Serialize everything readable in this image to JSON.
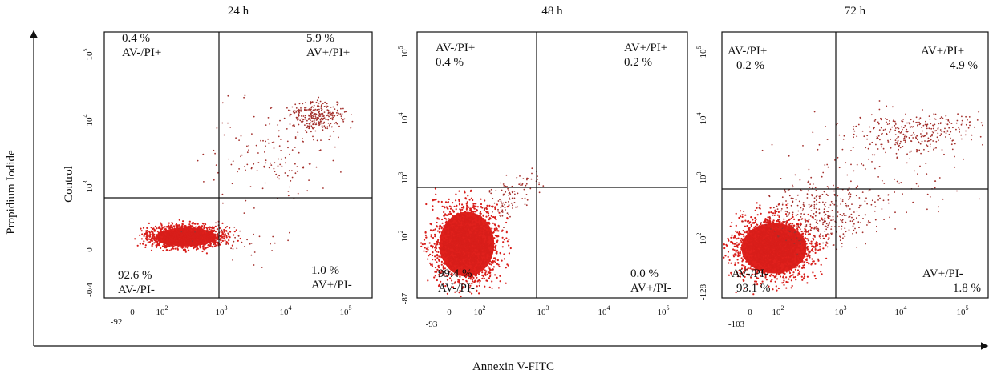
{
  "axes": {
    "y_label": "Propidium Iodide",
    "x_label": "Annexin V-FITC"
  },
  "row_label": "Control",
  "panels": [
    {
      "title": "24 h",
      "quadrants": {
        "upper_left": {
          "percent": "0.4 %",
          "label": "AV-/PI+"
        },
        "upper_right": {
          "percent": "5.9 %",
          "label": "AV+/PI+"
        },
        "lower_left": {
          "percent": "92.6 %",
          "label": "AV-/PI-"
        },
        "lower_right": {
          "percent": "1.0 %",
          "label": "AV+/PI-"
        }
      },
      "x_ticks": [
        "-92",
        "0",
        {
          "base": "10",
          "exp": "2"
        },
        {
          "base": "10",
          "exp": "3"
        },
        {
          "base": "10",
          "exp": "4"
        },
        {
          "base": "10",
          "exp": "5"
        }
      ],
      "y_ticks": [
        "-0/4",
        "0",
        {
          "base": "10",
          "exp": "3"
        },
        {
          "base": "10",
          "exp": "4"
        },
        {
          "base": "10",
          "exp": "5"
        }
      ]
    },
    {
      "title": "48 h",
      "quadrants": {
        "upper_left": {
          "label": "AV-/PI+",
          "percent": "0.4 %"
        },
        "upper_right": {
          "label": "AV+/PI+",
          "percent": "0.2 %"
        },
        "lower_left": {
          "label": "AV-/PI-",
          "percent": "99.4 %"
        },
        "lower_right": {
          "label": "AV+/PI-",
          "percent": "0.0 %"
        }
      },
      "x_ticks": [
        "-93",
        "0",
        {
          "base": "10",
          "exp": "2"
        },
        {
          "base": "10",
          "exp": "3"
        },
        {
          "base": "10",
          "exp": "4"
        },
        {
          "base": "10",
          "exp": "5"
        }
      ],
      "y_ticks": [
        "-87",
        {
          "base": "10",
          "exp": "2"
        },
        {
          "base": "10",
          "exp": "3"
        },
        {
          "base": "10",
          "exp": "4"
        },
        {
          "base": "10",
          "exp": "5"
        }
      ]
    },
    {
      "title": "72 h",
      "quadrants": {
        "upper_left": {
          "label": "AV-/PI+",
          "percent": "0.2 %"
        },
        "upper_right": {
          "label": "AV+/PI+",
          "percent": "4.9 %"
        },
        "lower_left": {
          "label": "AV-/PI-",
          "percent": "93.1 %"
        },
        "lower_right": {
          "label": "AV+/PI-",
          "percent": "1.8 %"
        }
      },
      "x_ticks": [
        "-103",
        "0",
        {
          "base": "10",
          "exp": "2"
        },
        {
          "base": "10",
          "exp": "3"
        },
        {
          "base": "10",
          "exp": "4"
        },
        {
          "base": "10",
          "exp": "5"
        }
      ],
      "y_ticks": [
        "-128",
        {
          "base": "10",
          "exp": "2"
        },
        {
          "base": "10",
          "exp": "3"
        },
        {
          "base": "10",
          "exp": "4"
        },
        {
          "base": "10",
          "exp": "5"
        }
      ]
    }
  ]
}
